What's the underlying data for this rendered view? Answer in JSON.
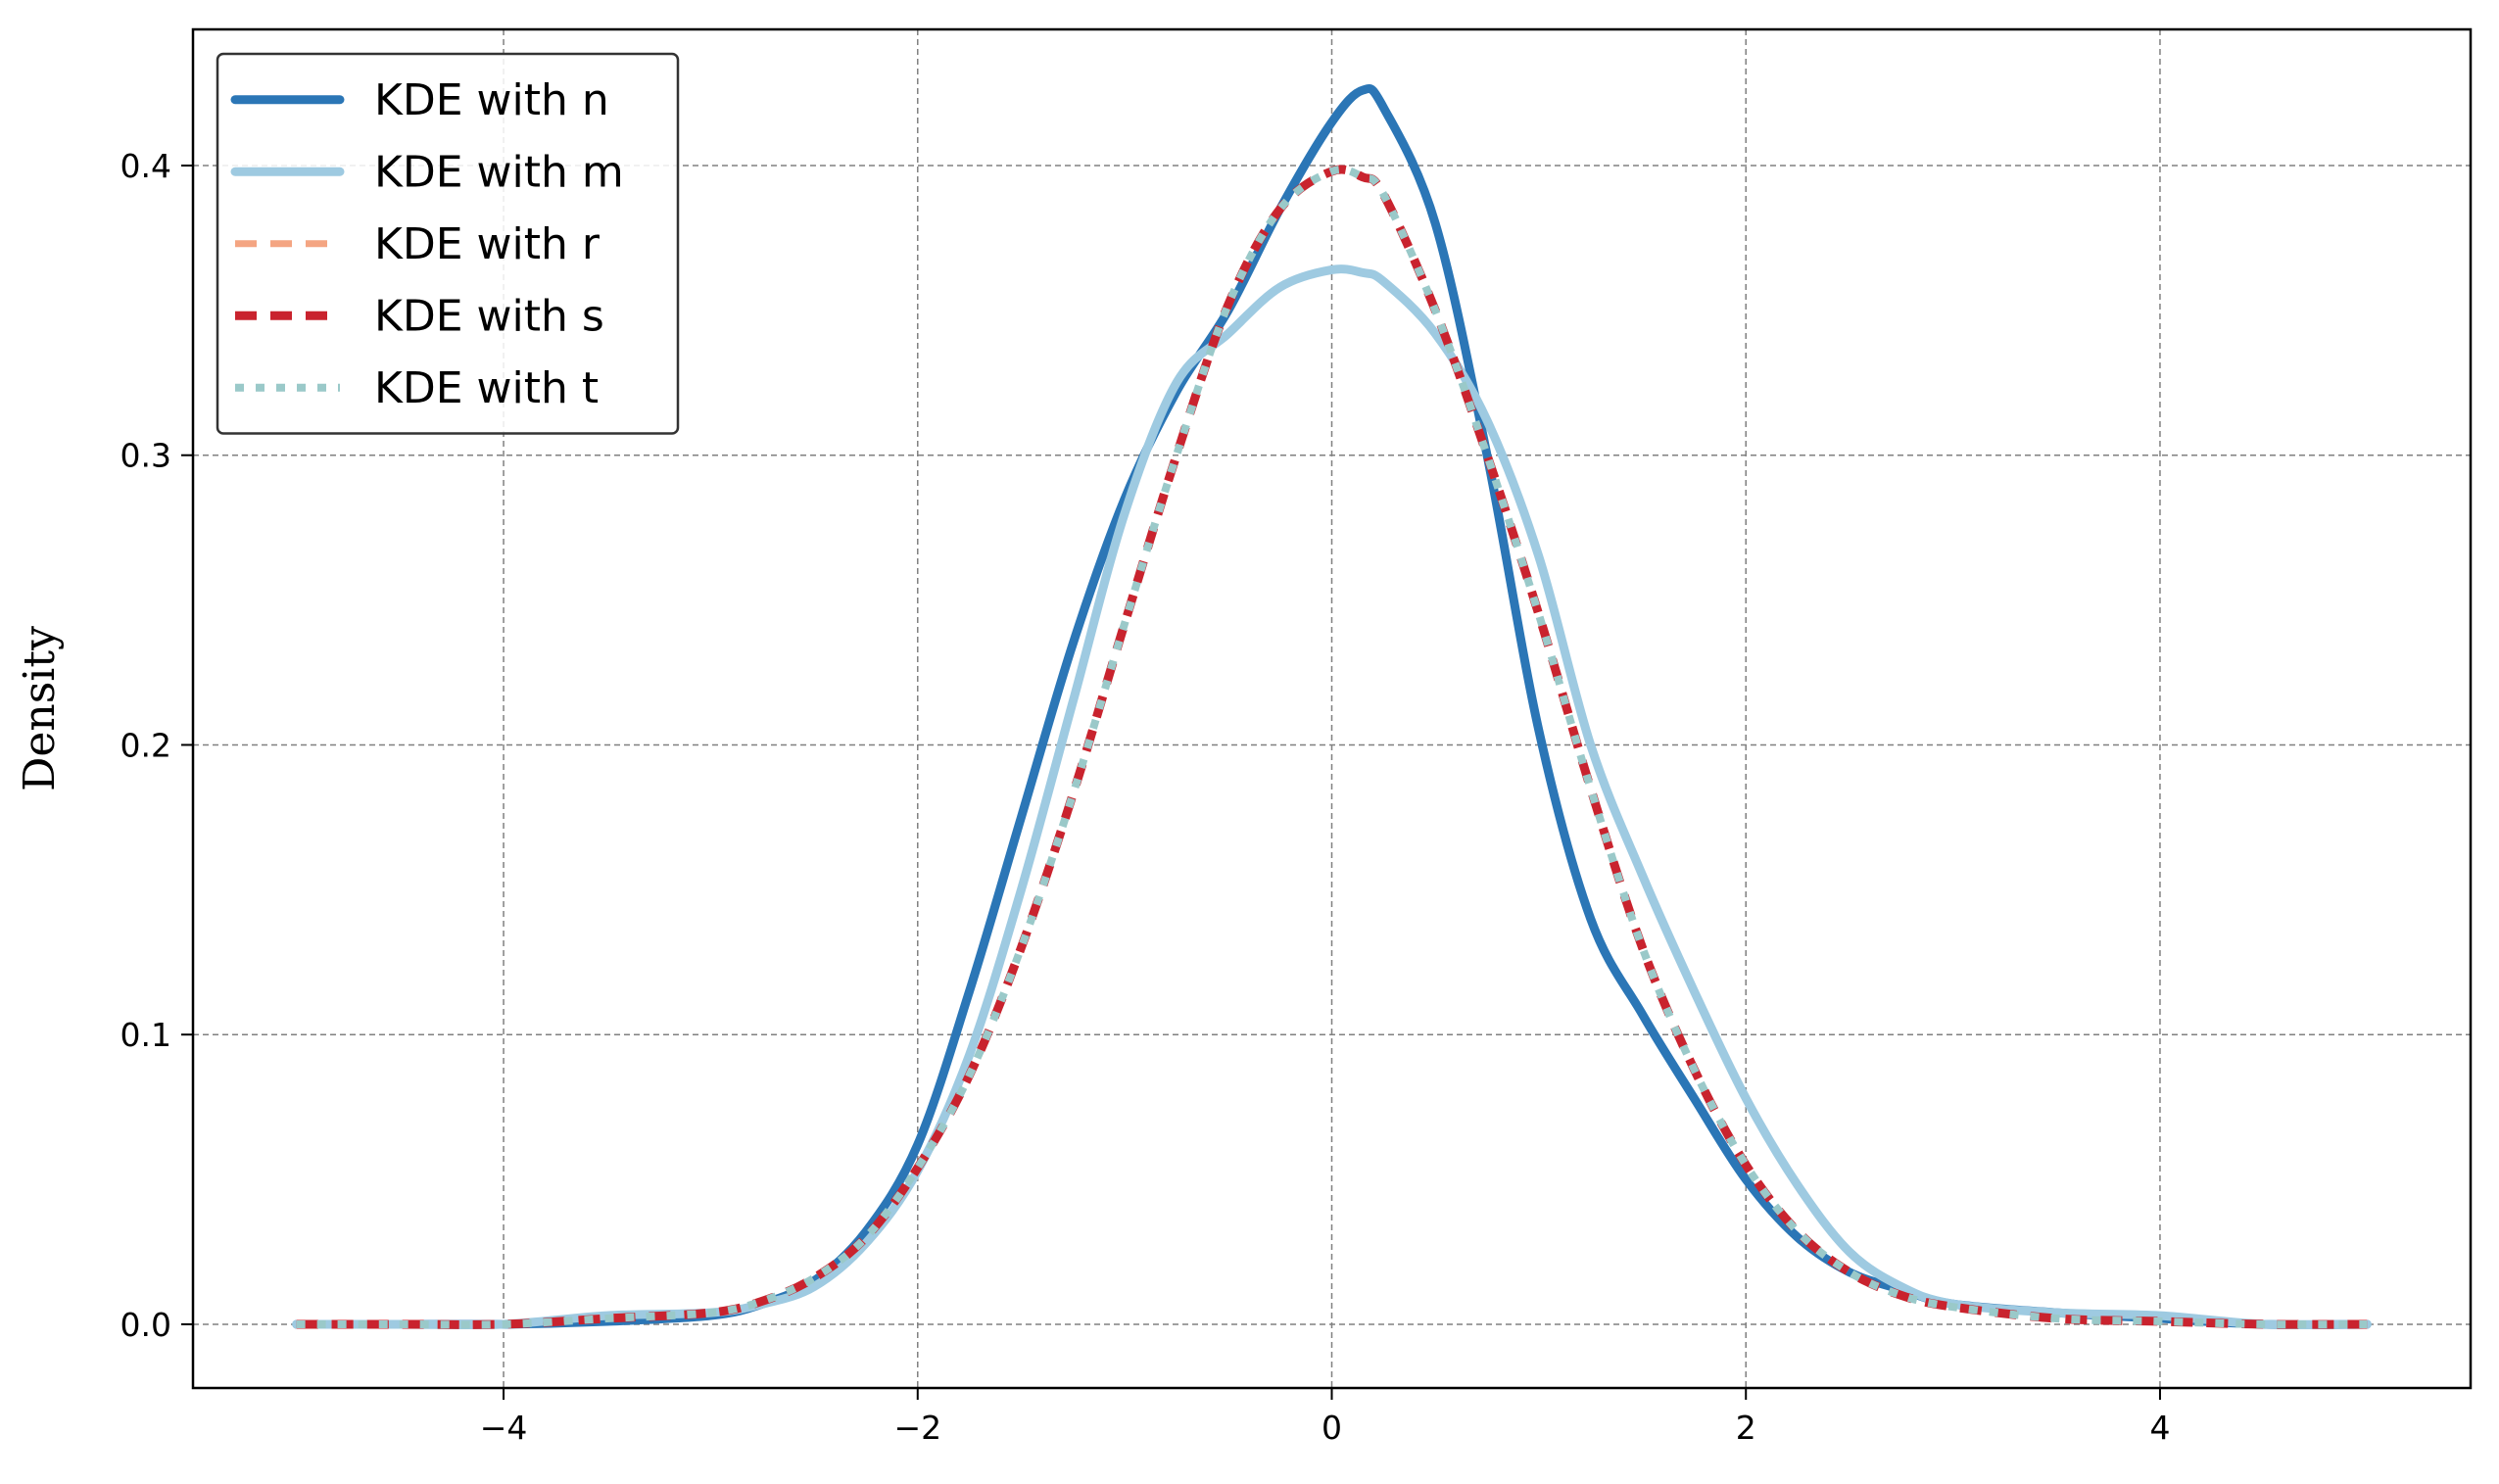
{
  "chart_data": {
    "type": "line",
    "title": "",
    "xlabel": "",
    "ylabel": "Density",
    "xlim": [
      -5.5,
      5.5
    ],
    "ylim": [
      -0.022,
      0.447
    ],
    "grid": true,
    "legend_position": "top-left",
    "x_ticks": [
      -4,
      -2,
      0,
      2,
      4
    ],
    "x_tick_labels": [
      "−4",
      "−2",
      "0",
      "2",
      "4"
    ],
    "y_ticks": [
      0.0,
      0.1,
      0.2,
      0.3,
      0.4
    ],
    "y_tick_labels": [
      "0.0",
      "0.1",
      "0.2",
      "0.3",
      "0.4"
    ],
    "x": [
      -5.0,
      -4.5,
      -4.0,
      -3.5,
      -3.0,
      -2.75,
      -2.5,
      -2.25,
      -2.0,
      -1.75,
      -1.5,
      -1.25,
      -1.0,
      -0.75,
      -0.5,
      -0.25,
      0.0,
      0.15,
      0.25,
      0.5,
      0.75,
      1.0,
      1.25,
      1.5,
      1.75,
      2.0,
      2.25,
      2.5,
      2.75,
      3.0,
      3.5,
      4.0,
      4.5,
      5.0
    ],
    "series": [
      {
        "name": "KDE with n",
        "color": "#2b76b6",
        "style": "solid",
        "values": [
          0.0,
          0.0,
          0.0,
          0.001,
          0.003,
          0.007,
          0.015,
          0.032,
          0.062,
          0.115,
          0.175,
          0.235,
          0.285,
          0.322,
          0.35,
          0.385,
          0.415,
          0.426,
          0.42,
          0.38,
          0.3,
          0.205,
          0.14,
          0.107,
          0.078,
          0.05,
          0.03,
          0.018,
          0.012,
          0.007,
          0.004,
          0.002,
          0.0,
          0.0
        ]
      },
      {
        "name": "KDE with m",
        "color": "#9ecae1",
        "style": "solid",
        "values": [
          0.0,
          0.0,
          0.0,
          0.003,
          0.004,
          0.007,
          0.013,
          0.028,
          0.053,
          0.093,
          0.15,
          0.215,
          0.28,
          0.325,
          0.342,
          0.358,
          0.364,
          0.363,
          0.36,
          0.342,
          0.312,
          0.265,
          0.2,
          0.155,
          0.115,
          0.078,
          0.048,
          0.025,
          0.013,
          0.007,
          0.004,
          0.003,
          0.0,
          0.0
        ]
      },
      {
        "name": "KDE with r",
        "color": "#f4a582",
        "style": "dashed",
        "values": [
          0.0,
          0.0,
          0.0,
          0.002,
          0.004,
          0.008,
          0.016,
          0.03,
          0.054,
          0.086,
          0.13,
          0.183,
          0.242,
          0.3,
          0.352,
          0.385,
          0.398,
          0.396,
          0.39,
          0.35,
          0.3,
          0.245,
          0.185,
          0.13,
          0.088,
          0.055,
          0.032,
          0.018,
          0.01,
          0.006,
          0.002,
          0.001,
          0.0,
          0.0
        ]
      },
      {
        "name": "KDE with s",
        "color": "#c9232e",
        "style": "dashed",
        "values": [
          0.0,
          0.0,
          0.0,
          0.002,
          0.004,
          0.008,
          0.016,
          0.03,
          0.054,
          0.086,
          0.13,
          0.183,
          0.242,
          0.3,
          0.352,
          0.385,
          0.398,
          0.396,
          0.39,
          0.35,
          0.3,
          0.245,
          0.185,
          0.13,
          0.088,
          0.055,
          0.032,
          0.018,
          0.01,
          0.006,
          0.002,
          0.001,
          0.0,
          0.0
        ]
      },
      {
        "name": "KDE with t",
        "color": "#9ac9c9",
        "style": "dotted",
        "values": [
          0.0,
          0.0,
          0.0,
          0.002,
          0.004,
          0.008,
          0.016,
          0.03,
          0.054,
          0.086,
          0.13,
          0.183,
          0.242,
          0.3,
          0.352,
          0.385,
          0.398,
          0.396,
          0.39,
          0.35,
          0.3,
          0.245,
          0.185,
          0.13,
          0.088,
          0.055,
          0.032,
          0.018,
          0.01,
          0.006,
          0.002,
          0.001,
          0.0,
          0.0
        ]
      }
    ]
  }
}
